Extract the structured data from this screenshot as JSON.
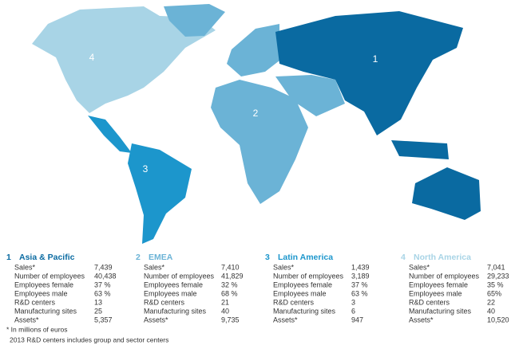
{
  "regions": [
    {
      "number": "1",
      "name": "Asia & Pacific",
      "color": "#0a6aa1",
      "rows": [
        {
          "label": "Sales*",
          "value": "7,439"
        },
        {
          "label": "Number of employees",
          "value": "40,438"
        },
        {
          "label": "Employees female",
          "value": "37 %"
        },
        {
          "label": "Employees male",
          "value": "63 %"
        },
        {
          "label": "R&D centers",
          "value": "13"
        },
        {
          "label": "Manufacturing sites",
          "value": "25"
        },
        {
          "label": "Assets*",
          "value": "5,357"
        }
      ]
    },
    {
      "number": "2",
      "name": "EMEA",
      "color": "#6bb3d6",
      "rows": [
        {
          "label": "Sales*",
          "value": "7,410"
        },
        {
          "label": "Number of employees",
          "value": "41,829"
        },
        {
          "label": "Employees female",
          "value": "32 %"
        },
        {
          "label": "Employees male",
          "value": "68 %"
        },
        {
          "label": "R&D centers",
          "value": "21"
        },
        {
          "label": "Manufacturing sites",
          "value": "40"
        },
        {
          "label": "Assets*",
          "value": "9,735"
        }
      ]
    },
    {
      "number": "3",
      "name": "Latin America",
      "color": "#1c96cc",
      "rows": [
        {
          "label": "Sales*",
          "value": "1,439"
        },
        {
          "label": "Number of employees",
          "value": "3,189"
        },
        {
          "label": "Employees female",
          "value": "37 %"
        },
        {
          "label": "Employees male",
          "value": "63 %"
        },
        {
          "label": "R&D centers",
          "value": "3"
        },
        {
          "label": "Manufacturing sites",
          "value": "6"
        },
        {
          "label": "Assets*",
          "value": "947"
        }
      ]
    },
    {
      "number": "4",
      "name": "North America",
      "color": "#a8d4e6",
      "rows": [
        {
          "label": "Sales*",
          "value": "7,041"
        },
        {
          "label": "Number of employees",
          "value": "29,233"
        },
        {
          "label": "Employees female",
          "value": "35 %"
        },
        {
          "label": "Employees male",
          "value": "65%"
        },
        {
          "label": "R&D centers",
          "value": "22"
        },
        {
          "label": "Manufacturing sites",
          "value": "40"
        },
        {
          "label": "Assets*",
          "value": "10,520"
        }
      ]
    }
  ],
  "footnotes": [
    "* In millions of euros",
    "2013 R&D centers includes group and sector centers"
  ]
}
